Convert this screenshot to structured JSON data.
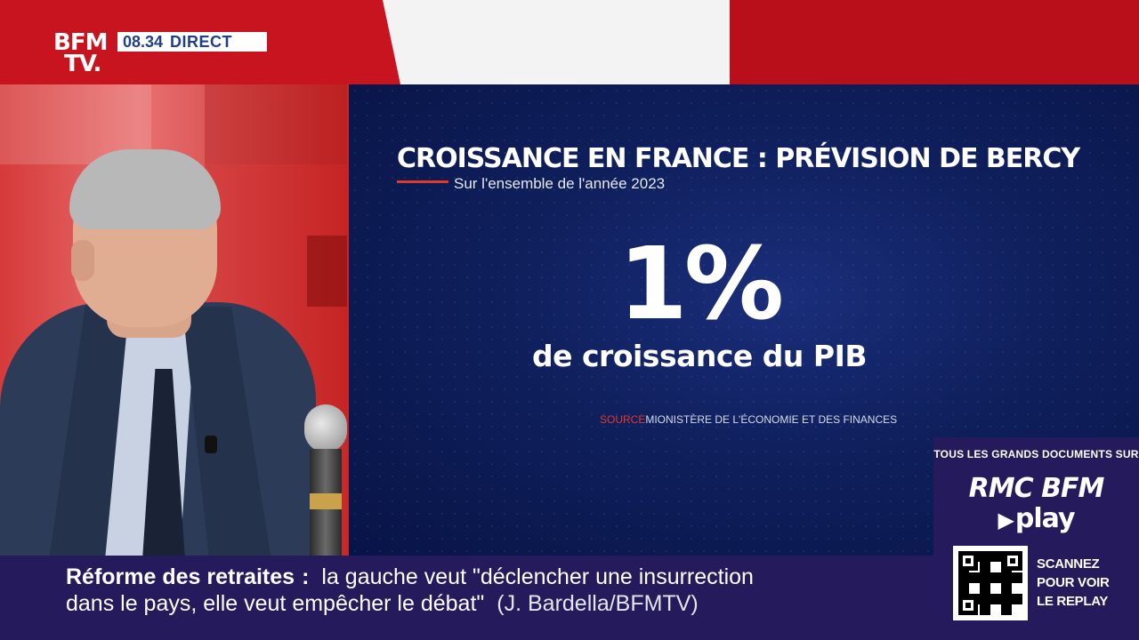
{
  "channel": {
    "logo_line1": "BFM",
    "logo_line2": "TV.",
    "time": "08.34",
    "live_label": "DIRECT"
  },
  "graphic": {
    "headline": "CROISSANCE EN FRANCE : PRÉVISION DE BERCY",
    "subtitle": "Sur l'ensemble de l'année 2023",
    "value": "1%",
    "value_label": "de croissance du PIB",
    "source_key": "SOURCE",
    "source_value": "MIONISTÈRE DE L'ÉCONOMIE ET DES FINANCES"
  },
  "promo": {
    "top_text": "TOUS LES GRANDS DOCUMENTS SUR",
    "brand": "RMC BFM",
    "play": "play",
    "scan_line1": "SCANNEZ",
    "scan_line2": "POUR VOIR",
    "scan_line3": "LE REPLAY"
  },
  "ticker": {
    "topic": "Réforme des retraites",
    "colon": ":",
    "line1_text": "la gauche veut \"déclencher une insurrection",
    "line2_text": "dans le pays, elle veut empêcher le débat\"",
    "credit": "(J. Bardella/BFMTV)"
  },
  "colors": {
    "brand_red": "#c8141e",
    "panel_blue": "#0f1f5c",
    "ticker_purple": "#241a5c",
    "source_red": "#e03a2a"
  }
}
